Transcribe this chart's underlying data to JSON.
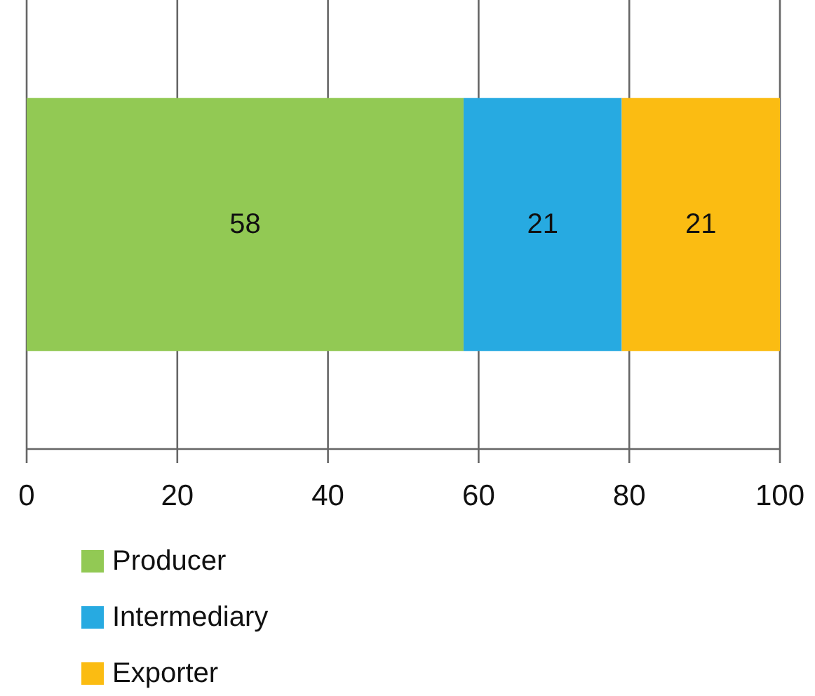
{
  "chart_data": {
    "type": "bar",
    "orientation": "horizontal",
    "stacked": true,
    "categories": [
      null
    ],
    "series": [
      {
        "name": "Producer",
        "color": "#92c954",
        "values": [
          58
        ]
      },
      {
        "name": "Intermediary",
        "color": "#27aae1",
        "values": [
          21
        ]
      },
      {
        "name": "Exporter",
        "color": "#fbbc12",
        "values": [
          21
        ]
      }
    ],
    "xlim": [
      0,
      100
    ],
    "xticks": [
      0,
      20,
      40,
      60,
      80,
      100
    ],
    "grid": "x",
    "data_labels": true,
    "legend": "bottom left"
  }
}
